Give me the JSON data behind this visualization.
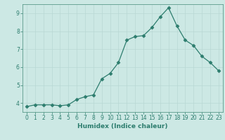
{
  "x": [
    0,
    1,
    2,
    3,
    4,
    5,
    6,
    7,
    8,
    9,
    10,
    11,
    12,
    13,
    14,
    15,
    16,
    17,
    18,
    19,
    20,
    21,
    22,
    23
  ],
  "y": [
    3.8,
    3.9,
    3.9,
    3.9,
    3.85,
    3.9,
    4.2,
    4.35,
    4.45,
    5.35,
    5.65,
    6.25,
    7.5,
    7.7,
    7.75,
    8.2,
    8.8,
    9.3,
    8.3,
    7.5,
    7.2,
    6.6,
    6.25,
    5.8
  ],
  "line_color": "#2d7d6e",
  "marker": "D",
  "markersize": 2.5,
  "linewidth": 0.9,
  "xlabel": "Humidex (Indice chaleur)",
  "xlim": [
    -0.5,
    23.5
  ],
  "ylim": [
    3.5,
    9.5
  ],
  "yticks": [
    4,
    5,
    6,
    7,
    8,
    9
  ],
  "xticks": [
    0,
    1,
    2,
    3,
    4,
    5,
    6,
    7,
    8,
    9,
    10,
    11,
    12,
    13,
    14,
    15,
    16,
    17,
    18,
    19,
    20,
    21,
    22,
    23
  ],
  "bg_color": "#cce8e4",
  "grid_color": "#b8d8d4",
  "tick_color": "#2d7d6e",
  "label_color": "#2d7d6e",
  "xlabel_fontsize": 6.5,
  "tick_fontsize": 5.5,
  "spine_color": "#5a9a8a"
}
